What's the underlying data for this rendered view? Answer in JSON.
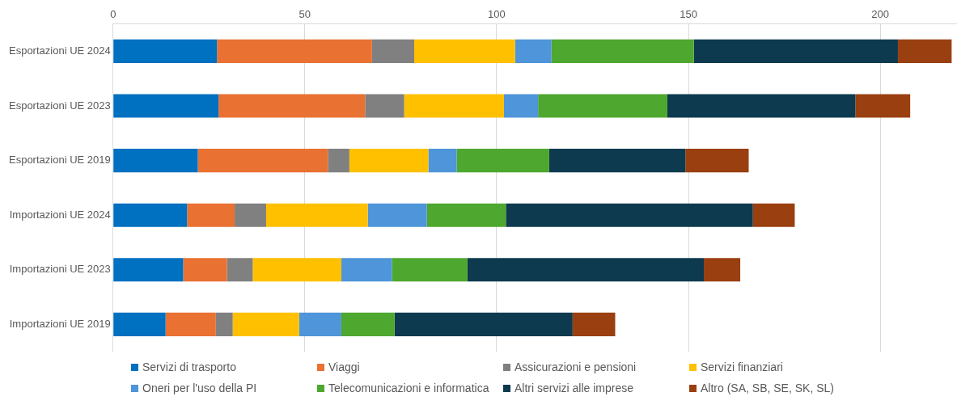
{
  "chart_data": {
    "type": "bar",
    "orientation": "horizontal",
    "stacked": true,
    "categories": [
      "Esportazioni UE 2024",
      "Esportazioni UE 2023",
      "Esportazioni UE 2019",
      "Importazioni UE 2024",
      "Importazioni UE 2023",
      "Importazioni UE 2019"
    ],
    "series": [
      {
        "name": "Servizi di trasporto",
        "color": "#0070c0",
        "values": [
          27.1,
          27.5,
          22.1,
          19.3,
          18.3,
          13.7
        ]
      },
      {
        "name": "Viaggi",
        "color": "#e97132",
        "values": [
          40.4,
          38.2,
          33.9,
          12.4,
          11.4,
          13.1
        ]
      },
      {
        "name": "Assicurazioni e pensioni",
        "color": "#808080",
        "values": [
          11.0,
          10.2,
          5.6,
          8.2,
          6.7,
          4.4
        ]
      },
      {
        "name": "Servizi finanziari",
        "color": "#ffc000",
        "values": [
          26.3,
          26.0,
          20.6,
          26.5,
          23.1,
          17.3
        ]
      },
      {
        "name": "Oneri per l'uso della PI",
        "color": "#4e95d9",
        "values": [
          9.5,
          8.9,
          7.4,
          15.4,
          13.2,
          11.0
        ]
      },
      {
        "name": "Telecomunicazioni e informatica",
        "color": "#4ea72e",
        "values": [
          37.1,
          33.7,
          24.1,
          20.6,
          19.7,
          13.9
        ]
      },
      {
        "name": "Altri servizi alle imprese",
        "color": "#0e3a4f",
        "values": [
          53.2,
          49.0,
          35.5,
          64.4,
          61.6,
          46.4
        ]
      },
      {
        "name": "Altro (SA, SB, SE, SK, SL)",
        "color": "#9a3f10",
        "values": [
          14.0,
          14.3,
          16.5,
          10.9,
          9.5,
          11.1
        ]
      }
    ],
    "xlim": [
      0,
      220
    ],
    "xticks": [
      0,
      50,
      100,
      150,
      200
    ],
    "grid": "x",
    "legend": "bottom"
  }
}
